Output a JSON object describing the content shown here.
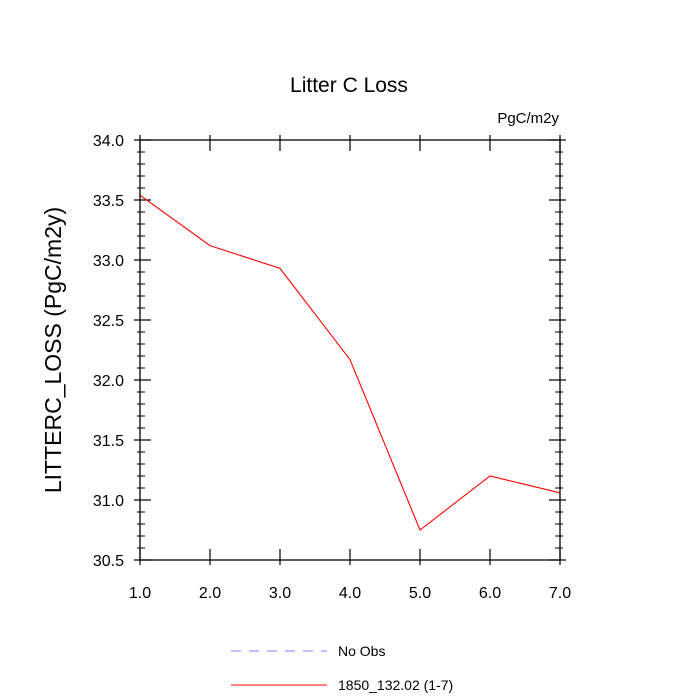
{
  "chart_data": {
    "type": "line",
    "title": "Litter C Loss",
    "units_label": "PgC/m2y",
    "xlabel": "",
    "ylabel": "LITTERC_LOSS  (PgC/m2y)",
    "xlim": [
      1.0,
      7.0
    ],
    "ylim": [
      30.5,
      34.0
    ],
    "x_ticks": [
      "1.0",
      "2.0",
      "3.0",
      "4.0",
      "5.0",
      "6.0",
      "7.0"
    ],
    "y_ticks": [
      "30.5",
      "31.0",
      "31.5",
      "32.0",
      "32.5",
      "33.0",
      "33.5",
      "34.0"
    ],
    "grid": false,
    "legend_position": "bottom",
    "series": [
      {
        "name": "No Obs",
        "color": "#8080ff",
        "style": "dashed",
        "x": [],
        "values": []
      },
      {
        "name": "1850_132.02 (1-7)",
        "color": "#ff0000",
        "style": "solid",
        "x": [
          1,
          2,
          3,
          4,
          5,
          6,
          7
        ],
        "values": [
          33.54,
          33.12,
          32.93,
          32.17,
          30.75,
          31.2,
          31.06
        ]
      }
    ]
  }
}
